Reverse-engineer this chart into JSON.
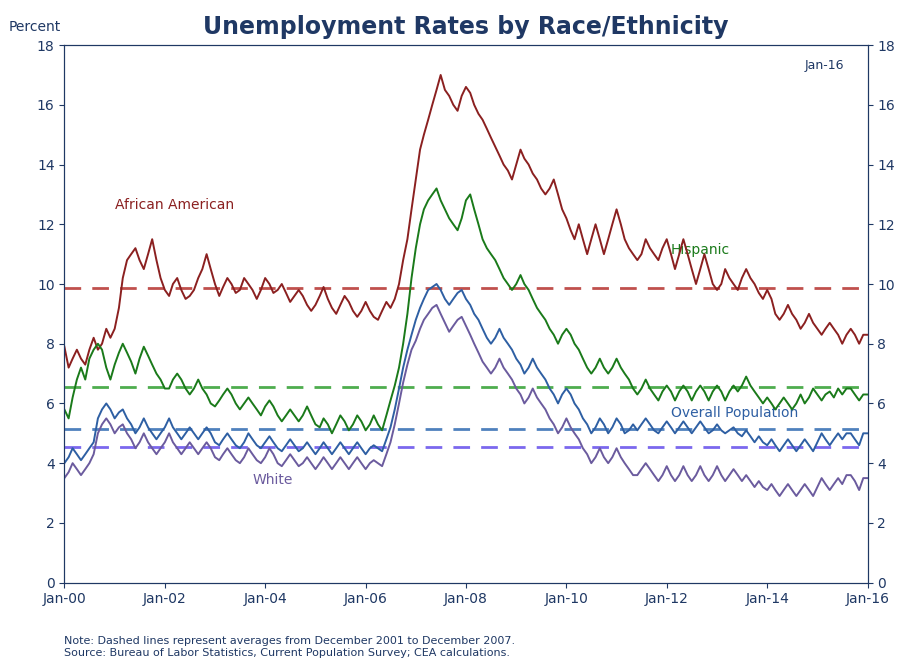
{
  "title": "Unemployment Rates by Race/Ethnicity",
  "ylabel_left": "Percent",
  "note": "Note: Dashed lines represent averages from December 2001 to December 2007.\nSource: Bureau of Labor Statistics, Current Population Survey; CEA calculations.",
  "annotation": "Jan-16",
  "ylim": [
    0,
    18
  ],
  "yticks": [
    0,
    2,
    4,
    6,
    8,
    10,
    12,
    14,
    16,
    18
  ],
  "title_color": "#1f3864",
  "axes_color": "#1f3864",
  "tick_color": "#1f3864",
  "label_color": "#1f3864",
  "line_colors": {
    "african_american": "#8b2020",
    "hispanic": "#1a7a1a",
    "overall": "#2e5fa3",
    "white": "#6b5b9e"
  },
  "dashed_colors": {
    "african_american": "#c0504d",
    "hispanic": "#4ead4e",
    "overall": "#4f81bd",
    "white": "#7b68ee"
  },
  "avg_african_american": 9.85,
  "avg_hispanic": 6.55,
  "avg_overall": 5.15,
  "avg_white": 4.55,
  "african_american": [
    7.9,
    7.2,
    7.5,
    7.8,
    7.5,
    7.3,
    7.8,
    8.2,
    7.8,
    8.0,
    8.5,
    8.2,
    8.5,
    9.2,
    10.2,
    10.8,
    11.0,
    11.2,
    10.8,
    10.5,
    11.0,
    11.5,
    10.8,
    10.2,
    9.8,
    9.6,
    10.0,
    10.2,
    9.8,
    9.5,
    9.6,
    9.8,
    10.2,
    10.5,
    11.0,
    10.5,
    10.0,
    9.6,
    9.9,
    10.2,
    10.0,
    9.7,
    9.8,
    10.2,
    10.0,
    9.8,
    9.5,
    9.8,
    10.2,
    10.0,
    9.7,
    9.8,
    10.0,
    9.7,
    9.4,
    9.6,
    9.8,
    9.6,
    9.3,
    9.1,
    9.3,
    9.6,
    9.9,
    9.5,
    9.2,
    9.0,
    9.3,
    9.6,
    9.4,
    9.1,
    8.9,
    9.1,
    9.4,
    9.1,
    8.9,
    8.8,
    9.1,
    9.4,
    9.2,
    9.5,
    10.0,
    10.8,
    11.5,
    12.5,
    13.5,
    14.5,
    15.0,
    15.5,
    16.0,
    16.5,
    17.0,
    16.5,
    16.3,
    16.0,
    15.8,
    16.3,
    16.6,
    16.4,
    16.0,
    15.7,
    15.5,
    15.2,
    14.9,
    14.6,
    14.3,
    14.0,
    13.8,
    13.5,
    14.0,
    14.5,
    14.2,
    14.0,
    13.7,
    13.5,
    13.2,
    13.0,
    13.2,
    13.5,
    13.0,
    12.5,
    12.2,
    11.8,
    11.5,
    12.0,
    11.5,
    11.0,
    11.5,
    12.0,
    11.5,
    11.0,
    11.5,
    12.0,
    12.5,
    12.0,
    11.5,
    11.2,
    11.0,
    10.8,
    11.0,
    11.5,
    11.2,
    11.0,
    10.8,
    11.2,
    11.5,
    11.0,
    10.5,
    11.0,
    11.5,
    11.0,
    10.5,
    10.0,
    10.5,
    11.0,
    10.5,
    10.0,
    9.8,
    10.0,
    10.5,
    10.2,
    10.0,
    9.8,
    10.2,
    10.5,
    10.2,
    10.0,
    9.7,
    9.5,
    9.8,
    9.5,
    9.0,
    8.8,
    9.0,
    9.3,
    9.0,
    8.8,
    8.5,
    8.7,
    9.0,
    8.7,
    8.5,
    8.3,
    8.5,
    8.7,
    8.5,
    8.3,
    8.0,
    8.3,
    8.5,
    8.3,
    8.0,
    8.3
  ],
  "hispanic": [
    5.8,
    5.5,
    6.2,
    6.8,
    7.2,
    6.8,
    7.5,
    7.8,
    8.0,
    7.8,
    7.2,
    6.8,
    7.3,
    7.7,
    8.0,
    7.7,
    7.4,
    7.0,
    7.5,
    7.9,
    7.6,
    7.3,
    7.0,
    6.8,
    6.5,
    6.5,
    6.8,
    7.0,
    6.8,
    6.5,
    6.3,
    6.5,
    6.8,
    6.5,
    6.3,
    6.0,
    5.9,
    6.1,
    6.3,
    6.5,
    6.3,
    6.0,
    5.8,
    6.0,
    6.2,
    6.0,
    5.8,
    5.6,
    5.9,
    6.1,
    5.9,
    5.6,
    5.4,
    5.6,
    5.8,
    5.6,
    5.4,
    5.6,
    5.9,
    5.6,
    5.3,
    5.2,
    5.5,
    5.3,
    5.0,
    5.3,
    5.6,
    5.4,
    5.1,
    5.3,
    5.6,
    5.4,
    5.1,
    5.3,
    5.6,
    5.3,
    5.1,
    5.6,
    6.1,
    6.6,
    7.2,
    8.0,
    9.0,
    10.2,
    11.2,
    12.0,
    12.5,
    12.8,
    13.0,
    13.2,
    12.8,
    12.5,
    12.2,
    12.0,
    11.8,
    12.2,
    12.8,
    13.0,
    12.5,
    12.0,
    11.5,
    11.2,
    11.0,
    10.8,
    10.5,
    10.2,
    10.0,
    9.8,
    10.0,
    10.3,
    10.0,
    9.8,
    9.5,
    9.2,
    9.0,
    8.8,
    8.5,
    8.3,
    8.0,
    8.3,
    8.5,
    8.3,
    8.0,
    7.8,
    7.5,
    7.2,
    7.0,
    7.2,
    7.5,
    7.2,
    7.0,
    7.2,
    7.5,
    7.2,
    7.0,
    6.8,
    6.5,
    6.3,
    6.5,
    6.8,
    6.5,
    6.3,
    6.1,
    6.4,
    6.6,
    6.4,
    6.1,
    6.4,
    6.6,
    6.4,
    6.1,
    6.4,
    6.6,
    6.4,
    6.1,
    6.4,
    6.6,
    6.4,
    6.1,
    6.4,
    6.6,
    6.4,
    6.6,
    6.9,
    6.6,
    6.4,
    6.2,
    6.0,
    6.2,
    6.0,
    5.8,
    6.0,
    6.2,
    6.0,
    5.8,
    6.0,
    6.3,
    6.0,
    6.2,
    6.5,
    6.3,
    6.1,
    6.3,
    6.4,
    6.2,
    6.5,
    6.3,
    6.5,
    6.5,
    6.3,
    6.1,
    6.3
  ],
  "overall": [
    4.0,
    4.2,
    4.5,
    4.3,
    4.1,
    4.3,
    4.5,
    4.7,
    5.5,
    5.8,
    6.0,
    5.8,
    5.5,
    5.7,
    5.8,
    5.5,
    5.3,
    5.0,
    5.2,
    5.5,
    5.2,
    5.0,
    4.8,
    5.0,
    5.2,
    5.5,
    5.2,
    5.0,
    4.8,
    5.0,
    5.2,
    5.0,
    4.8,
    5.0,
    5.2,
    5.0,
    4.7,
    4.6,
    4.8,
    5.0,
    4.8,
    4.6,
    4.5,
    4.7,
    5.0,
    4.8,
    4.6,
    4.5,
    4.7,
    4.9,
    4.7,
    4.5,
    4.4,
    4.6,
    4.8,
    4.6,
    4.4,
    4.5,
    4.7,
    4.5,
    4.3,
    4.5,
    4.7,
    4.5,
    4.3,
    4.5,
    4.7,
    4.5,
    4.3,
    4.5,
    4.7,
    4.5,
    4.3,
    4.5,
    4.6,
    4.5,
    4.4,
    4.8,
    5.2,
    5.8,
    6.5,
    7.2,
    7.8,
    8.3,
    8.8,
    9.2,
    9.5,
    9.8,
    9.9,
    10.0,
    9.8,
    9.5,
    9.3,
    9.5,
    9.7,
    9.8,
    9.5,
    9.3,
    9.0,
    8.8,
    8.5,
    8.2,
    8.0,
    8.2,
    8.5,
    8.2,
    8.0,
    7.8,
    7.5,
    7.3,
    7.0,
    7.2,
    7.5,
    7.2,
    7.0,
    6.8,
    6.5,
    6.3,
    6.0,
    6.3,
    6.5,
    6.3,
    6.0,
    5.8,
    5.5,
    5.3,
    5.0,
    5.2,
    5.5,
    5.3,
    5.0,
    5.2,
    5.5,
    5.3,
    5.0,
    5.1,
    5.3,
    5.1,
    5.3,
    5.5,
    5.3,
    5.1,
    5.0,
    5.2,
    5.4,
    5.2,
    5.0,
    5.2,
    5.4,
    5.2,
    5.0,
    5.2,
    5.4,
    5.2,
    5.0,
    5.1,
    5.3,
    5.1,
    5.0,
    5.1,
    5.2,
    5.0,
    4.9,
    5.1,
    4.9,
    4.7,
    4.9,
    4.7,
    4.6,
    4.8,
    4.6,
    4.4,
    4.6,
    4.8,
    4.6,
    4.4,
    4.6,
    4.8,
    4.6,
    4.4,
    4.7,
    5.0,
    4.8,
    4.6,
    4.8,
    5.0,
    4.8,
    5.0,
    5.0,
    4.8,
    4.6,
    5.0
  ],
  "white": [
    3.5,
    3.7,
    4.0,
    3.8,
    3.6,
    3.8,
    4.0,
    4.3,
    5.0,
    5.3,
    5.5,
    5.3,
    5.0,
    5.2,
    5.3,
    5.0,
    4.8,
    4.5,
    4.7,
    5.0,
    4.7,
    4.5,
    4.3,
    4.5,
    4.7,
    5.0,
    4.7,
    4.5,
    4.3,
    4.5,
    4.7,
    4.5,
    4.3,
    4.5,
    4.7,
    4.5,
    4.2,
    4.1,
    4.3,
    4.5,
    4.3,
    4.1,
    4.0,
    4.2,
    4.5,
    4.3,
    4.1,
    4.0,
    4.2,
    4.5,
    4.3,
    4.0,
    3.9,
    4.1,
    4.3,
    4.1,
    3.9,
    4.0,
    4.2,
    4.0,
    3.8,
    4.0,
    4.2,
    4.0,
    3.8,
    4.0,
    4.2,
    4.0,
    3.8,
    4.0,
    4.2,
    4.0,
    3.8,
    4.0,
    4.1,
    4.0,
    3.9,
    4.3,
    4.7,
    5.3,
    6.0,
    6.7,
    7.3,
    7.8,
    8.1,
    8.5,
    8.8,
    9.0,
    9.2,
    9.3,
    9.0,
    8.7,
    8.4,
    8.6,
    8.8,
    8.9,
    8.6,
    8.3,
    8.0,
    7.7,
    7.4,
    7.2,
    7.0,
    7.2,
    7.5,
    7.2,
    7.0,
    6.8,
    6.5,
    6.3,
    6.0,
    6.2,
    6.5,
    6.2,
    6.0,
    5.8,
    5.5,
    5.3,
    5.0,
    5.2,
    5.5,
    5.2,
    5.0,
    4.8,
    4.5,
    4.3,
    4.0,
    4.2,
    4.5,
    4.2,
    4.0,
    4.2,
    4.5,
    4.2,
    4.0,
    3.8,
    3.6,
    3.6,
    3.8,
    4.0,
    3.8,
    3.6,
    3.4,
    3.6,
    3.9,
    3.6,
    3.4,
    3.6,
    3.9,
    3.6,
    3.4,
    3.6,
    3.9,
    3.6,
    3.4,
    3.6,
    3.9,
    3.6,
    3.4,
    3.6,
    3.8,
    3.6,
    3.4,
    3.6,
    3.4,
    3.2,
    3.4,
    3.2,
    3.1,
    3.3,
    3.1,
    2.9,
    3.1,
    3.3,
    3.1,
    2.9,
    3.1,
    3.3,
    3.1,
    2.9,
    3.2,
    3.5,
    3.3,
    3.1,
    3.3,
    3.5,
    3.3,
    3.6,
    3.6,
    3.4,
    3.1,
    3.5
  ],
  "background_color": "#ffffff",
  "note_color": "#1f3864"
}
